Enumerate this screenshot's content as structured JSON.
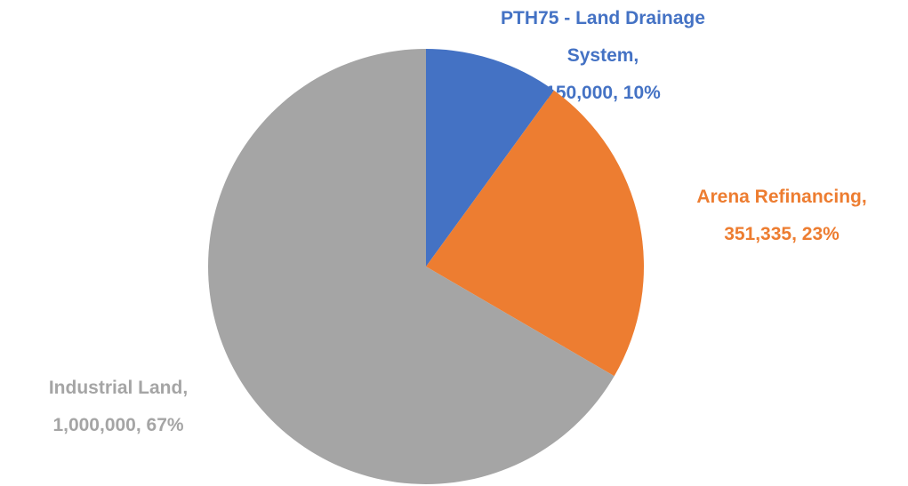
{
  "chart_data": {
    "type": "pie",
    "categories": [
      "PTH75 - Land Drainage System,",
      "Arena Refinancing,",
      "Industrial Land,"
    ],
    "values": [
      150000,
      351335,
      1000000
    ],
    "value_labels": [
      "150,000, 10%",
      "351,335, 23%",
      "1,000,000, 67%"
    ],
    "colors": [
      "#4472c4",
      "#ed7d31",
      "#a5a5a5"
    ]
  }
}
